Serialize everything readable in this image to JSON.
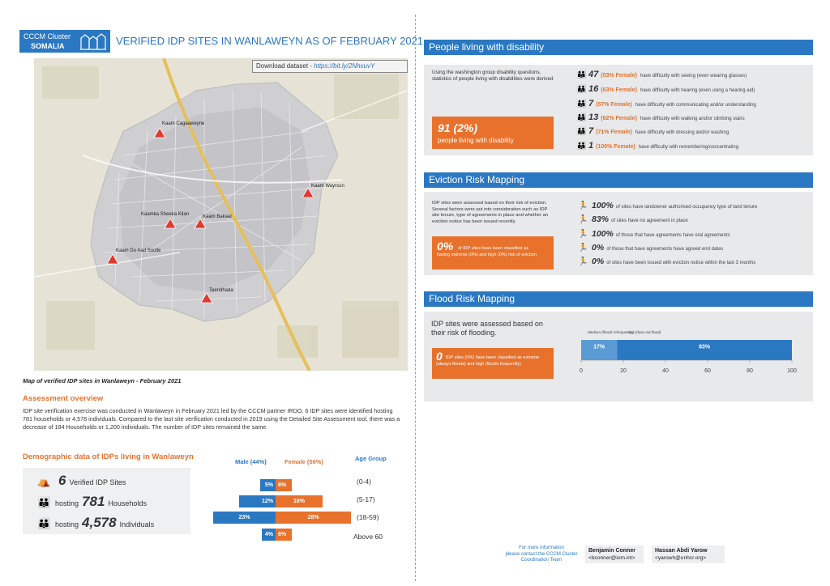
{
  "header": {
    "logo_line1": "CCCM Cluster",
    "logo_line2": "SOMALIA",
    "title": "VERIFIED IDP SITES IN WANLAWEYN AS OF FEBRUARY 2021"
  },
  "map": {
    "download_label": "Download dataset - ",
    "download_link": "https://bit.ly/2NhxuvY",
    "caption": "Map of verified IDP sites in Wanlaweyn - February 2021",
    "sites": [
      {
        "name": "Kaam Cagaaweyne"
      },
      {
        "name": "Kaam Wayrsun"
      },
      {
        "name": "Kaamka Sheeka Kilan"
      },
      {
        "name": "Kaam Bakaal"
      },
      {
        "name": "Kaam Du Aad Suulle"
      },
      {
        "name": "Teendhada"
      }
    ]
  },
  "assessment": {
    "title": "Assessment overview",
    "text": "IDP site verification exercise was conducted in Wanlaweyn in February 2021 led by the CCCM partner IRDO. 6 IDP sites were identified hosting 781 households or 4,578 individuals. Compared to the last site verification conducted in 2019 using the Detailed Site Assessment tool, there was a decrease of 184 Households or 1,200 individuals. The number of IDP sites remained the same."
  },
  "demographics": {
    "title": "Demographic data of IDPs living in Wanlaweyn",
    "sites_num": "6",
    "sites_label": "Verified IDP Sites",
    "hh_prefix": "hosting",
    "hh_num": "781",
    "hh_label": "Households",
    "ind_prefix": "hosting",
    "ind_num": "4,578",
    "ind_label": "Individuals",
    "male_header": "Male (44%)",
    "female_header": "Female (56%)",
    "age_header": "Age Group",
    "pyramid": [
      {
        "age": "(0-4)",
        "male": "5%",
        "female": "6%"
      },
      {
        "age": "(5-17)",
        "male": "12%",
        "female": "16%"
      },
      {
        "age": "(18-59)",
        "male": "23%",
        "female": "28%"
      },
      {
        "age": "Above 60",
        "male": "4%",
        "female": "6%"
      }
    ]
  },
  "disability": {
    "title": "People living with disability",
    "intro": "Using the washington group disability questions, statistics of people living with disabilities were derived",
    "total": "91 (2%)",
    "total_label": "people living with disability",
    "rows": [
      {
        "num": "47",
        "pct": "(53% Female)",
        "text": "have difficulty with seeing (even wearing glasses)"
      },
      {
        "num": "16",
        "pct": "(63% Female)",
        "text": "have difficulty with hearing (even using a hearing aid)"
      },
      {
        "num": "7",
        "pct": "(57% Female)",
        "text": "have difficulty with communicating and/or understanding"
      },
      {
        "num": "13",
        "pct": "(62% Female)",
        "text": "have difficulty with walking and/or climbing stairs"
      },
      {
        "num": "7",
        "pct": "(71% Female)",
        "text": "have difficulty with dressing and/or washing"
      },
      {
        "num": "1",
        "pct": "(100% Female)",
        "text": "have difficulty with remembering/concentrating"
      }
    ]
  },
  "eviction": {
    "title": "Eviction Risk Mapping",
    "intro": "IDP sites were assessed based on their risk of eviction. Several factors were put into consideration such as IDP site tenure, type of agreements in place and whether an eviction notice has been issued recently.",
    "big": "0%",
    "big_text": "of IDP sites have been classified as having extreme (0%) and high (0%) risk of eviction",
    "rows": [
      {
        "num": "100%",
        "text": "of sites have landowner authorised occupancy type of land tenure"
      },
      {
        "num": "83%",
        "text": "of sites have no agreement in place"
      },
      {
        "num": "100%",
        "text": "of those that have agreements have oral agreements"
      },
      {
        "num": "0%",
        "text": "of those that have agreements have agreed end dates"
      },
      {
        "num": "0%",
        "text": "of sites have been issued with eviction notice within the last 3 months"
      }
    ]
  },
  "flood": {
    "title": "Flood Risk Mapping",
    "intro": "IDP sites were assessed based on their risk of flooding.",
    "big": "0",
    "big_text": "IDP sites (0%) have been classified as extreme (always floods) and high (floods frequently)"
  },
  "chart_data": {
    "type": "bar",
    "orientation": "horizontal-stacked",
    "series": [
      {
        "name": "Medium (floods infrequently)",
        "values": [
          17
        ],
        "label": "17%",
        "color": "#5b9bd5"
      },
      {
        "name": "Low (does not flood)",
        "values": [
          83
        ],
        "label": "83%",
        "color": "#2b78c2"
      }
    ],
    "xlim": [
      0,
      100
    ],
    "xticks": [
      "0",
      "20",
      "40",
      "60",
      "80",
      "100"
    ],
    "grid": false,
    "legend": "top"
  },
  "footer": {
    "info": [
      "For more information",
      "please contact the CCCM Cluster",
      "Coordination Team"
    ],
    "contact1_name": "Benjamin Conner",
    "contact1_email": "<bconner@iom.int>",
    "contact2_name": "Hassan Abdi Yarow",
    "contact2_email": "<yarowh@unhcr.org>"
  },
  "colors": {
    "blue": "#2b78c2",
    "orange": "#e8722c",
    "panel_gray": "#e7e9eb"
  }
}
